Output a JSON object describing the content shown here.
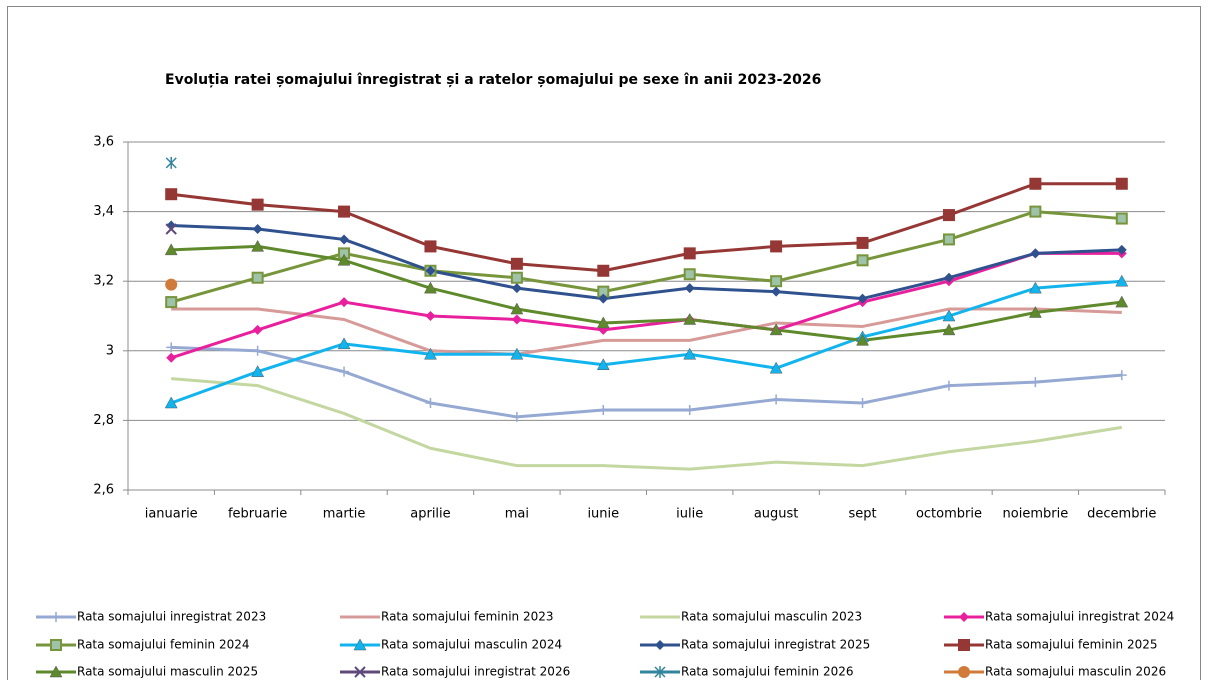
{
  "chart_data": {
    "type": "line",
    "title": "Evoluția ratei șomajului înregistrat și a ratelor șomajului pe sexe în anii 2023-2026",
    "categories": [
      "ianuarie",
      "februarie",
      "martie",
      "aprilie",
      "mai",
      "iunie",
      "iulie",
      "august",
      "sept",
      "octombrie",
      "noiembrie",
      "decembrie"
    ],
    "ylim": [
      2.6,
      3.6
    ],
    "yticks": [
      {
        "value": 2.6,
        "label": "2,6"
      },
      {
        "value": 2.8,
        "label": "2,8"
      },
      3,
      {
        "value": 3.2,
        "label": "3,2"
      },
      {
        "value": 3.4,
        "label": "3,4"
      },
      {
        "value": 3.6,
        "label": "3,6"
      }
    ],
    "grid": true,
    "series": [
      {
        "name": "Rata somajului inregistrat 2023",
        "color": "#95A9D2",
        "marker": "plus",
        "values": [
          3.01,
          3.0,
          2.94,
          2.85,
          2.81,
          2.83,
          2.83,
          2.86,
          2.85,
          2.9,
          2.91,
          2.93
        ]
      },
      {
        "name": "Rata somajului feminin 2023",
        "color": "#D69B98",
        "marker": "none",
        "values": [
          3.12,
          3.12,
          3.09,
          3.0,
          2.99,
          3.03,
          3.03,
          3.08,
          3.07,
          3.12,
          3.12,
          3.11
        ]
      },
      {
        "name": "Rata somajului masculin 2023",
        "color": "#C4D7A0",
        "marker": "none",
        "values": [
          2.92,
          2.9,
          2.82,
          2.72,
          2.67,
          2.67,
          2.66,
          2.68,
          2.67,
          2.71,
          2.74,
          2.78
        ]
      },
      {
        "name": "Rata somajului inregistrat 2024",
        "color": "#E8209E",
        "marker": "diamond",
        "values": [
          2.98,
          3.06,
          3.14,
          3.1,
          3.09,
          3.06,
          3.09,
          3.06,
          3.14,
          3.2,
          3.28,
          3.28
        ]
      },
      {
        "name": "Rata somajului feminin 2024",
        "color": "#77953A",
        "marker": "square-light",
        "values": [
          3.14,
          3.21,
          3.28,
          3.23,
          3.21,
          3.17,
          3.22,
          3.2,
          3.26,
          3.32,
          3.4,
          3.38
        ]
      },
      {
        "name": "Rata somajului masculin 2024",
        "color": "#12B4EE",
        "marker": "triangle",
        "values": [
          2.85,
          2.94,
          3.02,
          2.99,
          2.99,
          2.96,
          2.99,
          2.95,
          3.04,
          3.1,
          3.18,
          3.2
        ]
      },
      {
        "name": "Rata somajului inregistrat 2025",
        "color": "#2F528F",
        "marker": "diamond",
        "values": [
          3.36,
          3.35,
          3.32,
          3.23,
          3.18,
          3.15,
          3.18,
          3.17,
          3.15,
          3.21,
          3.28,
          3.29
        ]
      },
      {
        "name": "Rata somajului feminin 2025",
        "color": "#953735",
        "marker": "square",
        "values": [
          3.45,
          3.42,
          3.4,
          3.3,
          3.25,
          3.23,
          3.28,
          3.3,
          3.31,
          3.39,
          3.48,
          3.48
        ]
      },
      {
        "name": "Rata somajului masculin 2025",
        "color": "#5E8A2C",
        "marker": "triangle",
        "values": [
          3.29,
          3.3,
          3.26,
          3.18,
          3.12,
          3.08,
          3.09,
          3.06,
          3.03,
          3.06,
          3.11,
          3.14
        ]
      },
      {
        "name": "Rata somajului inregistrat 2026",
        "color": "#604A7B",
        "marker": "x",
        "values": [
          3.35,
          null,
          null,
          null,
          null,
          null,
          null,
          null,
          null,
          null,
          null,
          null
        ]
      },
      {
        "name": "Rata somajului feminin 2026",
        "color": "#31859C",
        "marker": "asterisk",
        "values": [
          3.54,
          null,
          null,
          null,
          null,
          null,
          null,
          null,
          null,
          null,
          null,
          null
        ]
      },
      {
        "name": "Rata somajului masculin 2026",
        "color": "#D07B3A",
        "marker": "circle",
        "values": [
          3.19,
          null,
          null,
          null,
          null,
          null,
          null,
          null,
          null,
          null,
          null,
          null
        ]
      }
    ]
  }
}
